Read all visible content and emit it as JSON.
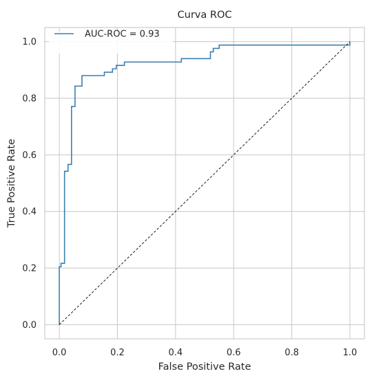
{
  "chart_data": {
    "type": "line",
    "title": "Curva ROC",
    "xlabel": "False Positive Rate",
    "ylabel": "True Positive Rate",
    "xlim": [
      -0.05,
      1.05
    ],
    "ylim": [
      -0.05,
      1.05
    ],
    "xticks": [
      0.0,
      0.2,
      0.4,
      0.6,
      0.8,
      1.0
    ],
    "xtick_labels": [
      "0.0",
      "0.2",
      "0.4",
      "0.6",
      "0.8",
      "1.0"
    ],
    "yticks": [
      0.0,
      0.2,
      0.4,
      0.6,
      0.8,
      1.0
    ],
    "ytick_labels": [
      "0.0",
      "0.2",
      "0.4",
      "0.6",
      "0.8",
      "1.0"
    ],
    "grid": true,
    "legend_position": "top-left",
    "series": [
      {
        "name": "AUC-ROC = 0.93",
        "color": "#3a7fb0",
        "style": "solid",
        "x": [
          0.0,
          0.0,
          0.006,
          0.006,
          0.018,
          0.018,
          0.03,
          0.03,
          0.042,
          0.042,
          0.054,
          0.054,
          0.078,
          0.078,
          0.155,
          0.155,
          0.183,
          0.183,
          0.196,
          0.196,
          0.224,
          0.224,
          0.42,
          0.42,
          0.52,
          0.52,
          0.53,
          0.53,
          0.55,
          0.55,
          1.0,
          1.0
        ],
        "y": [
          0.0,
          0.205,
          0.205,
          0.217,
          0.217,
          0.542,
          0.542,
          0.566,
          0.566,
          0.771,
          0.771,
          0.843,
          0.843,
          0.88,
          0.88,
          0.892,
          0.892,
          0.904,
          0.904,
          0.916,
          0.916,
          0.928,
          0.928,
          0.94,
          0.94,
          0.964,
          0.964,
          0.976,
          0.976,
          0.988,
          0.988,
          1.0
        ]
      },
      {
        "name": "",
        "color": "#000000",
        "style": "dashed",
        "x": [
          0.0,
          1.0
        ],
        "y": [
          0.0,
          1.0
        ]
      }
    ]
  }
}
